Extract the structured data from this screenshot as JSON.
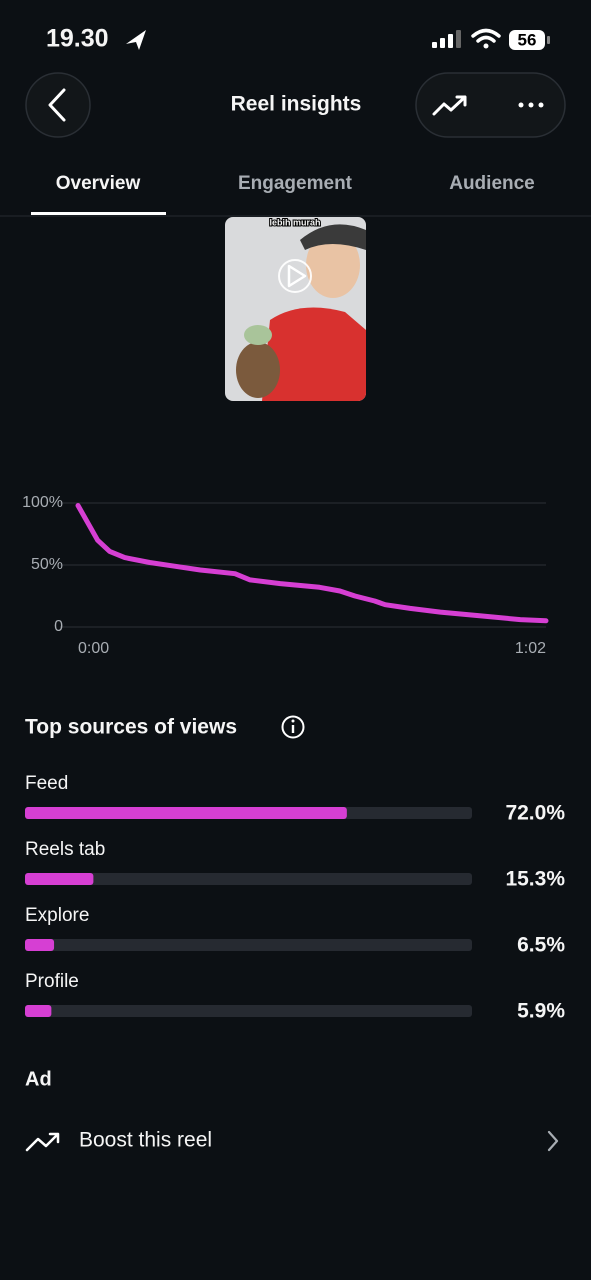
{
  "status_bar": {
    "time": "19.30",
    "battery": "56"
  },
  "header": {
    "title": "Reel insights"
  },
  "tabs": [
    "Overview",
    "Engagement",
    "Audience"
  ],
  "video": {
    "caption": "lebih murah"
  },
  "chart_data": [
    {
      "type": "line",
      "color": "#d63fd3",
      "x": [
        0,
        1.3,
        2.6,
        4.2,
        6.2,
        9.5,
        12.8,
        16.2,
        20.8,
        22.8,
        26.8,
        32,
        34.7,
        36.7,
        39.3,
        40.7,
        44,
        48,
        53.2,
        58.6,
        62
      ],
      "values": [
        98,
        84,
        70,
        61,
        56,
        52,
        49,
        46,
        43,
        38,
        35,
        32,
        29,
        25,
        21,
        18,
        15,
        12,
        9,
        6,
        5
      ],
      "xlim": [
        0,
        62
      ],
      "xticks": [
        {
          "value": 0,
          "label": "0:00"
        },
        {
          "value": 62,
          "label": "1:02"
        }
      ],
      "ylim": [
        0,
        100
      ],
      "yticks": [
        {
          "value": 100,
          "label": "100%"
        },
        {
          "value": 50,
          "label": "50%"
        },
        0
      ],
      "grid": true
    },
    {
      "type": "bar",
      "title": "Top sources of views",
      "color": "#d63fd3",
      "categories": [
        "Feed",
        "Reels tab",
        "Explore",
        "Profile"
      ],
      "values": [
        72.0,
        15.3,
        6.5,
        5.9
      ],
      "value_labels": [
        "72.0%",
        "15.3%",
        "6.5%",
        "5.9%"
      ],
      "xlim": [
        0,
        100
      ]
    }
  ],
  "ad": {
    "title": "Ad",
    "action": "Boost this reel"
  }
}
